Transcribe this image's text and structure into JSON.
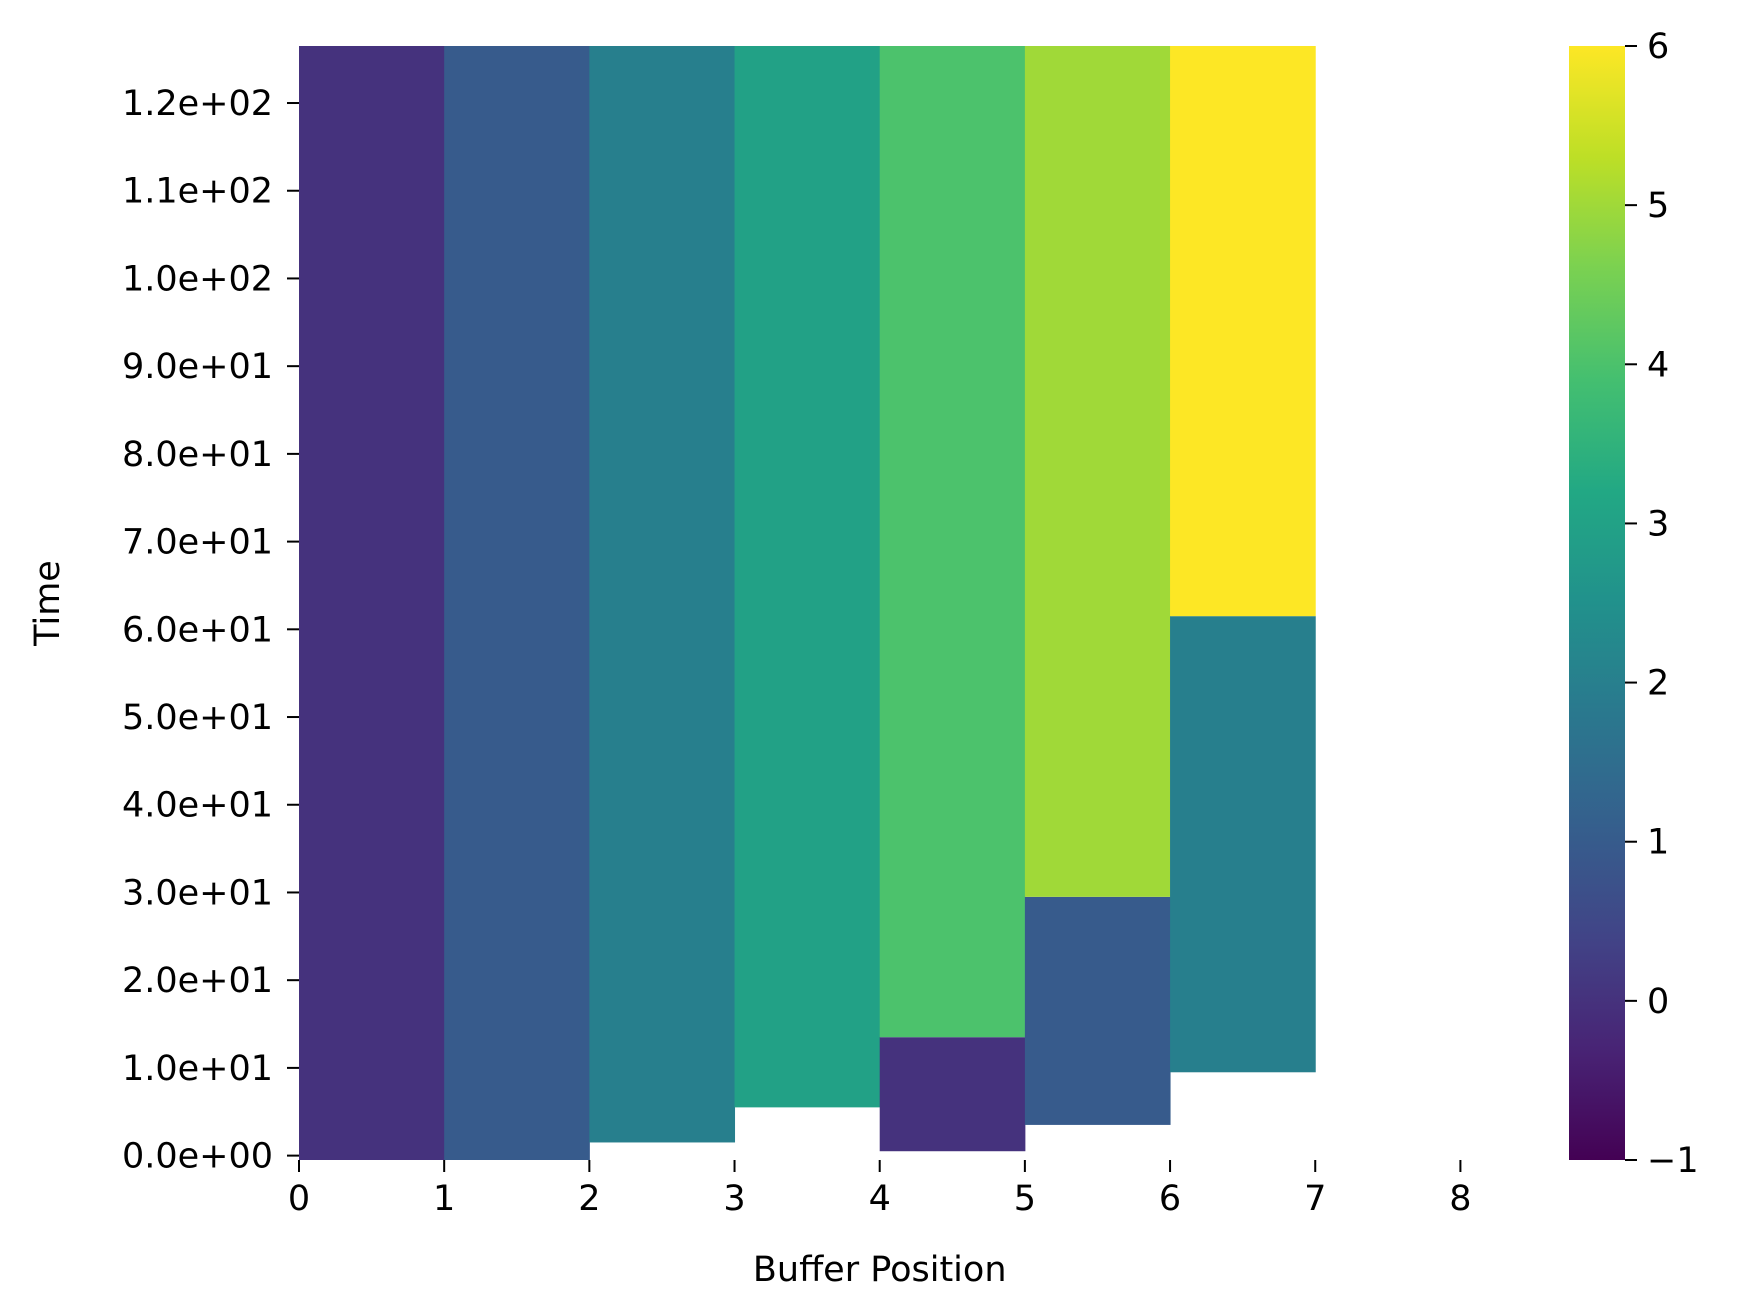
{
  "chart_data": {
    "type": "heatmap",
    "xlabel": "Buffer Position",
    "ylabel": "Time",
    "xlim": [
      0,
      8.5
    ],
    "ylim": [
      -0.5,
      126.5
    ],
    "x_ticks": [
      0,
      1,
      2,
      3,
      4,
      5,
      6,
      7,
      8
    ],
    "x_tick_labels": [
      "0",
      "1",
      "2",
      "3",
      "4",
      "5",
      "6",
      "7",
      "8"
    ],
    "y_ticks": [
      0,
      10,
      20,
      30,
      40,
      50,
      60,
      70,
      80,
      90,
      100,
      110,
      120
    ],
    "y_tick_labels": [
      "0.0e+00",
      "1.0e+01",
      "2.0e+01",
      "3.0e+01",
      "4.0e+01",
      "5.0e+01",
      "6.0e+01",
      "7.0e+01",
      "8.0e+01",
      "9.0e+01",
      "1.0e+02",
      "1.1e+02",
      "1.2e+02"
    ],
    "colorbar": {
      "colormap": "viridis",
      "range": [
        -1,
        6
      ],
      "ticks": [
        -1,
        0,
        1,
        2,
        3,
        4,
        5,
        6
      ],
      "tick_labels": [
        "−1",
        "0",
        "1",
        "2",
        "3",
        "4",
        "5",
        "6"
      ]
    },
    "cells": [
      {
        "x0": 0,
        "x1": 1,
        "y0": -0.5,
        "y1": 126.5,
        "value": 0
      },
      {
        "x0": 1,
        "x1": 2,
        "y0": -0.5,
        "y1": 126.5,
        "value": 1
      },
      {
        "x0": 2,
        "x1": 3,
        "y0": 1.5,
        "y1": 126.5,
        "value": 2
      },
      {
        "x0": 3,
        "x1": 4,
        "y0": 5.5,
        "y1": 126.5,
        "value": 3
      },
      {
        "x0": 4,
        "x1": 5,
        "y0": 0.5,
        "y1": 13.5,
        "value": 0
      },
      {
        "x0": 4,
        "x1": 5,
        "y0": 13.5,
        "y1": 126.5,
        "value": 4
      },
      {
        "x0": 5,
        "x1": 6,
        "y0": 3.5,
        "y1": 29.5,
        "value": 1
      },
      {
        "x0": 5,
        "x1": 6,
        "y0": 29.5,
        "y1": 126.5,
        "value": 5
      },
      {
        "x0": 6,
        "x1": 7,
        "y0": 9.5,
        "y1": 61.5,
        "value": 2
      },
      {
        "x0": 6,
        "x1": 7,
        "y0": 61.5,
        "y1": 126.5,
        "value": 6
      }
    ]
  }
}
